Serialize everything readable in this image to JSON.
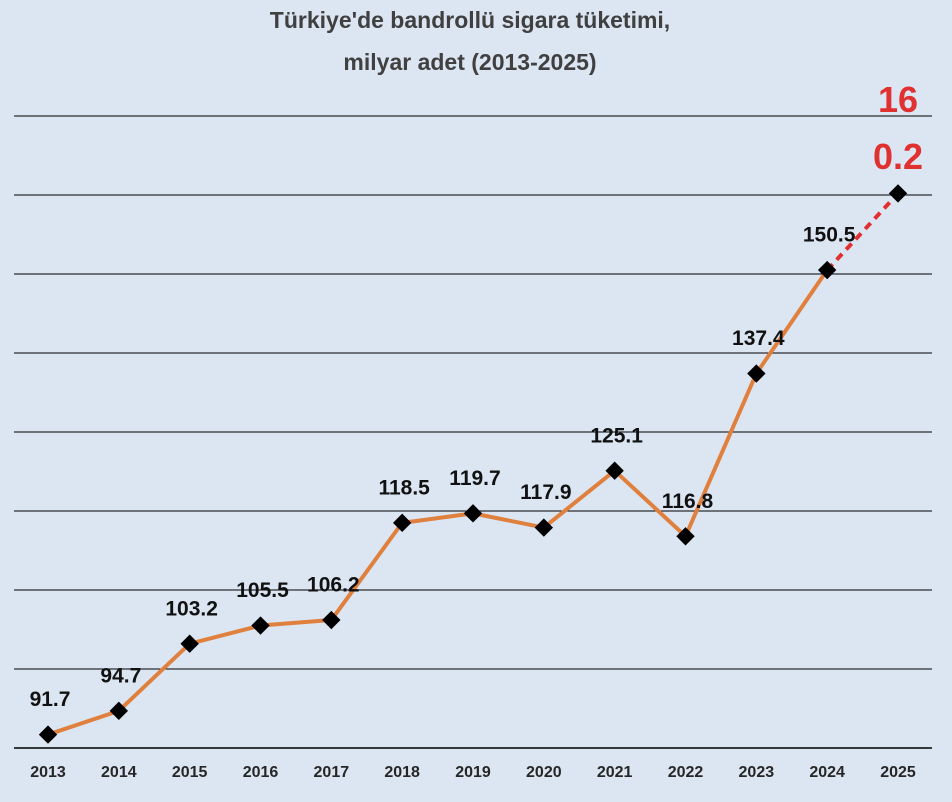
{
  "chart_data": {
    "type": "line",
    "title": "Türkiye'de bandrollü sigara tüketimi,",
    "subtitle": "milyar adet (2013-2025)",
    "categories": [
      "2013",
      "2014",
      "2015",
      "2016",
      "2017",
      "2018",
      "2019",
      "2020",
      "2021",
      "2022",
      "2023",
      "2024",
      "2025"
    ],
    "series": [
      {
        "color": "#e0803e",
        "projected_color": "#e03030",
        "projected_points": 1,
        "values": [
          91.7,
          94.7,
          103.2,
          105.5,
          106.2,
          118.5,
          119.7,
          117.9,
          125.1,
          116.8,
          137.4,
          150.5,
          160.2
        ]
      }
    ],
    "ylim": [
      90,
      170
    ],
    "yticks": [
      90,
      100,
      110,
      120,
      130,
      140,
      150,
      160,
      170
    ],
    "grid": true
  }
}
